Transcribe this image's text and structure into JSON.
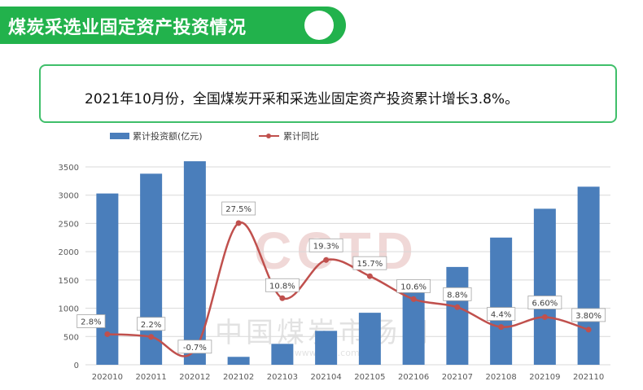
{
  "header": {
    "title": "煤炭采选业固定资产投资情况"
  },
  "subtitle": "2021年10月份，全国煤炭开采和采选业固定资产投资累计增长3.8%。",
  "watermark": {
    "logo": "CCTD",
    "name": "中国煤炭市场网",
    "url": "www.cctd.com.cn"
  },
  "colors": {
    "header": "#22b24c",
    "bar": "#4a7ebb",
    "line": "#c0504d"
  },
  "chart_data": {
    "type": "bar+line",
    "categories": [
      "202010",
      "202011",
      "202012",
      "202102",
      "202103",
      "202104",
      "202105",
      "202106",
      "202107",
      "202108",
      "202109",
      "202110"
    ],
    "series": [
      {
        "name": "累计投资额(亿元)",
        "type": "bar",
        "values": [
          3030,
          3380,
          3600,
          140,
          370,
          600,
          920,
          1510,
          1730,
          2250,
          2760,
          3150
        ]
      },
      {
        "name": "累计同比",
        "type": "line",
        "values": [
          2.8,
          2.2,
          -0.7,
          27.5,
          10.8,
          19.3,
          15.7,
          10.6,
          8.8,
          4.4,
          6.6,
          3.8
        ],
        "labels": [
          "2.8%",
          "2.2%",
          "-0.7%",
          "27.5%",
          "10.8%",
          "19.3%",
          "15.7%",
          "10.6%",
          "8.8%",
          "4.4%",
          "6.60%",
          "3.80%"
        ]
      }
    ],
    "y_axis": {
      "ticks": [
        0,
        500,
        1000,
        1500,
        2000,
        2500,
        3000,
        3500
      ],
      "ylim": [
        0,
        3500
      ]
    },
    "grid": true,
    "legend_position": "top-left"
  }
}
